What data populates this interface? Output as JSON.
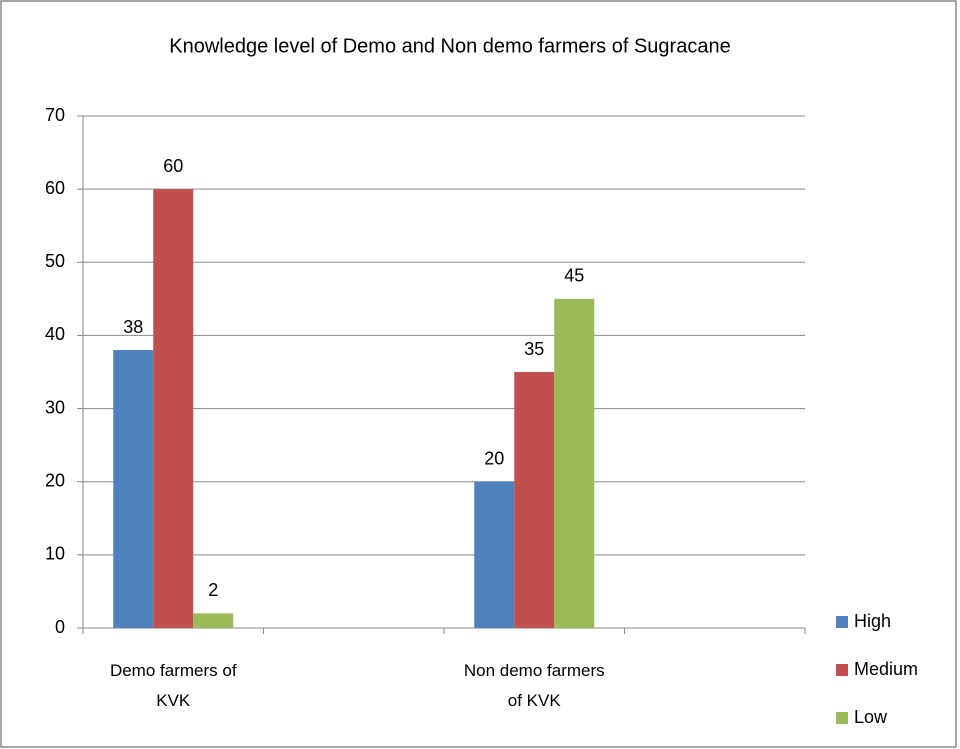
{
  "chart_data": {
    "type": "bar",
    "title": "Knowledge level of Demo and Non demo farmers of Sugracane",
    "categories": [
      "Demo farmers of KVK",
      null,
      "Non demo farmers of KVK",
      null
    ],
    "series": [
      {
        "name": "High",
        "color": "#4f81bd",
        "values": [
          38,
          null,
          20,
          null
        ]
      },
      {
        "name": "Medium",
        "color": "#c0504d",
        "values": [
          60,
          null,
          35,
          null
        ]
      },
      {
        "name": "Low",
        "color": "#9bbb59",
        "values": [
          2,
          null,
          45,
          null
        ]
      }
    ],
    "ylim": [
      0,
      70
    ],
    "yticks": [
      0,
      10,
      20,
      30,
      40,
      50,
      60,
      70
    ],
    "grid": true,
    "legend": "right"
  }
}
